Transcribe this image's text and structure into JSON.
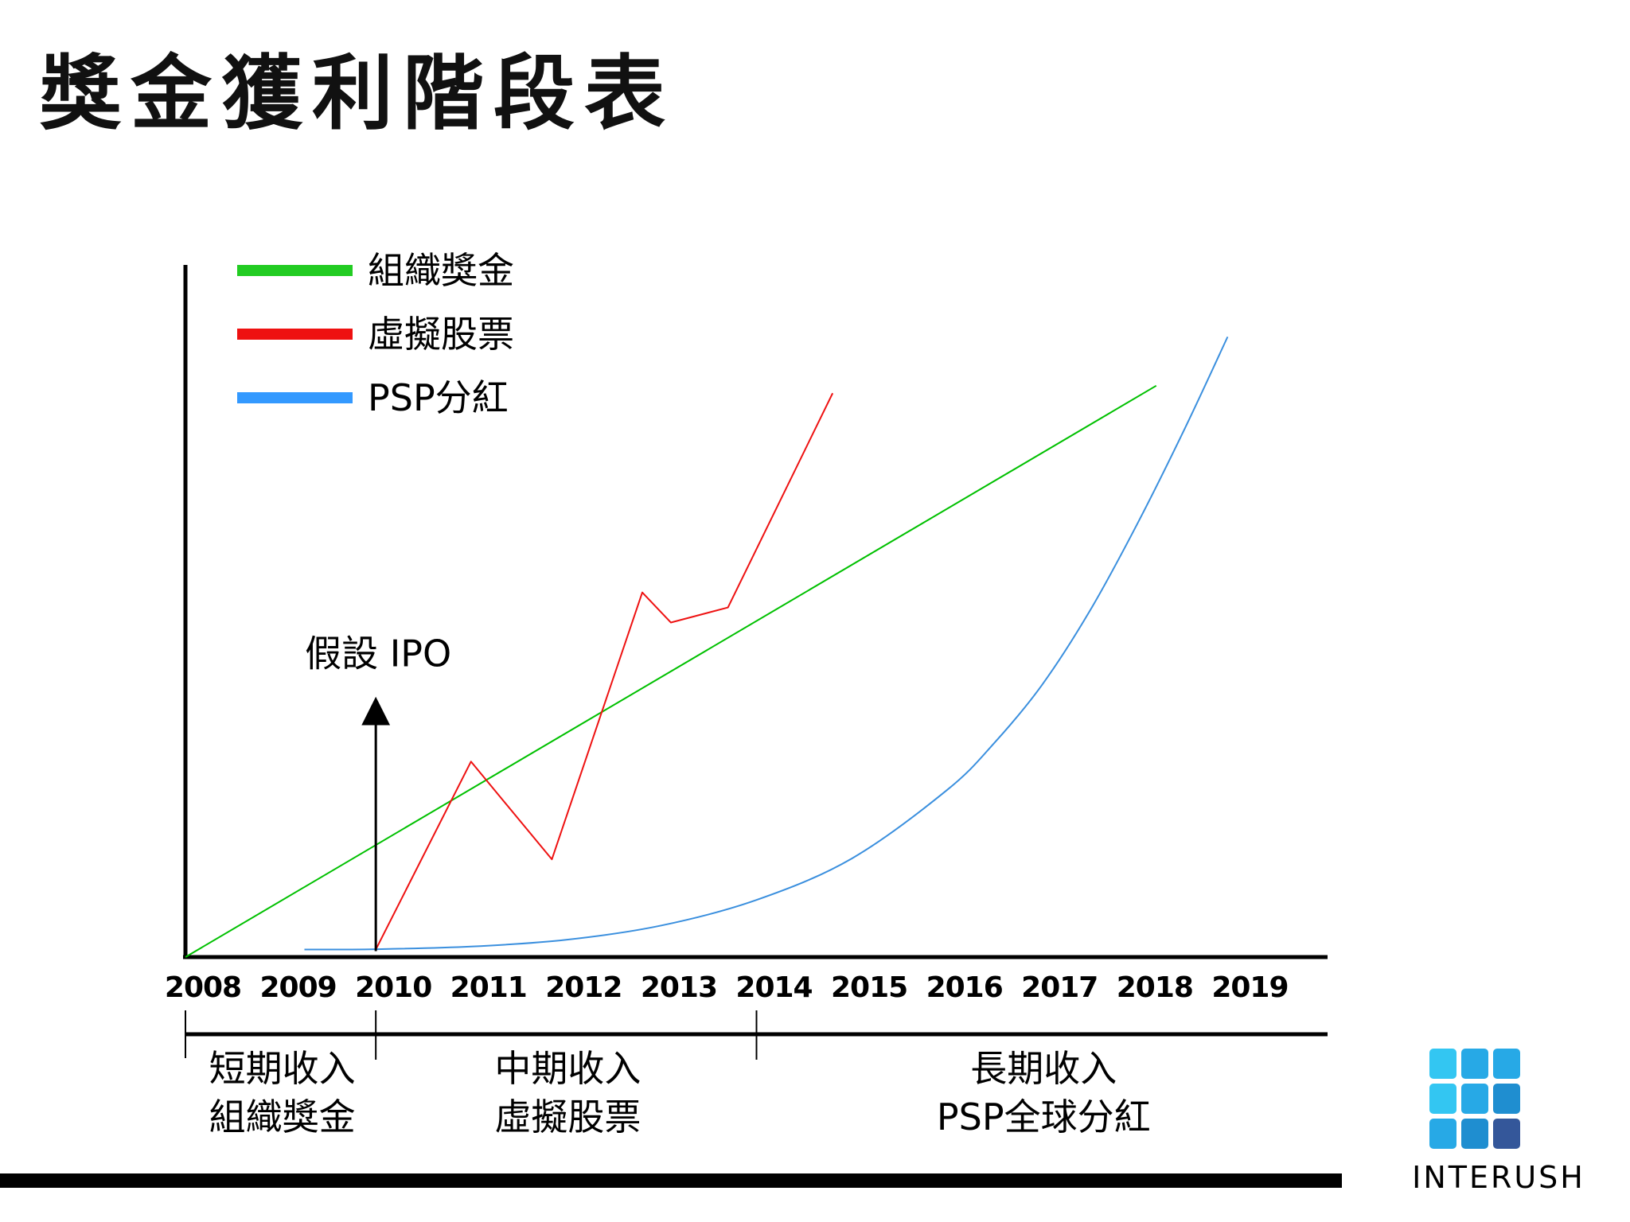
{
  "title": "獎金獲利階段表",
  "chart_data": {
    "type": "line",
    "x": [
      "2008",
      "2009",
      "2010",
      "2011",
      "2012",
      "2013",
      "2014",
      "2015",
      "2016",
      "2017",
      "2018",
      "2019"
    ],
    "series": [
      {
        "name": "組織獎金",
        "color": "#00c000",
        "legend_color": "#22cc22",
        "points": [
          [
            2008,
            0
          ],
          [
            2018.2,
            76
          ]
        ]
      },
      {
        "name": "虛擬股票",
        "color": "#ee1111",
        "legend_color": "#ee1111",
        "points": [
          [
            2010,
            1
          ],
          [
            2011,
            26
          ],
          [
            2011.85,
            13
          ],
          [
            2012.8,
            48.5
          ],
          [
            2013.1,
            44.5
          ],
          [
            2013.7,
            46.5
          ],
          [
            2014.8,
            75
          ]
        ]
      },
      {
        "name": "PSP分紅",
        "color": "#3a8fde",
        "legend_color": "#3399ff",
        "points": [
          [
            2009.25,
            1
          ],
          [
            2010,
            1.05
          ],
          [
            2011,
            1.4
          ],
          [
            2012,
            2.3
          ],
          [
            2013,
            4.2
          ],
          [
            2014,
            7.6
          ],
          [
            2015,
            13.1
          ],
          [
            2016,
            22.2
          ],
          [
            2016.5,
            28.5
          ],
          [
            2017,
            36.2
          ],
          [
            2017.5,
            46
          ],
          [
            2018,
            57.6
          ],
          [
            2018.5,
            70.3
          ],
          [
            2018.95,
            82.5
          ]
        ]
      }
    ],
    "xlim": [
      2008,
      2020
    ],
    "ylim": [
      0,
      100
    ],
    "annotation": {
      "label": "假設 IPO",
      "x": 2010,
      "y_top": 34
    },
    "phases": [
      {
        "start": 2008,
        "end": 2010,
        "line1": "短期收入",
        "line2": "組織獎金"
      },
      {
        "start": 2010,
        "end": 2014,
        "line1": "中期收入",
        "line2": "虛擬股票"
      },
      {
        "start": 2014,
        "end": 2020,
        "line1": "長期收入",
        "line2": "PSP全球分紅"
      }
    ],
    "grid": false,
    "legend_position": "top-left"
  },
  "logo": {
    "text": "INTERUSH",
    "colors": [
      "#33c6f2",
      "#27a9e6",
      "#1f8ed0",
      "#2a70a8",
      "#34579a"
    ]
  },
  "footer": {
    "bar_color": "#000000"
  }
}
